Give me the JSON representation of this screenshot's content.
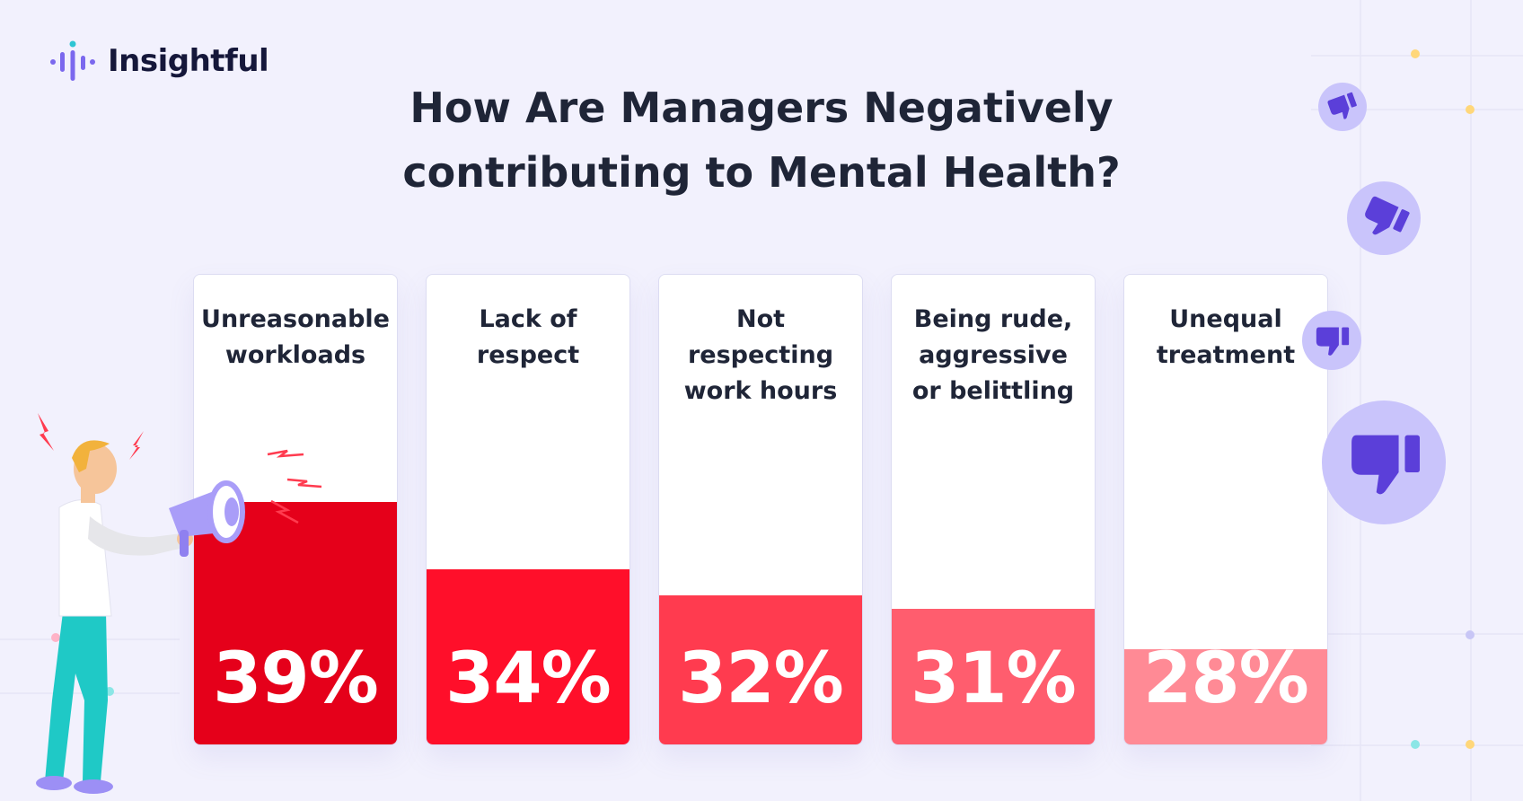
{
  "brand": {
    "name": "Insightful"
  },
  "title_lines": [
    "How Are Managers Negatively",
    "contributing to Mental Health?"
  ],
  "chart_data": {
    "type": "bar",
    "title": "How Are Managers Negatively contributing to Mental Health?",
    "categories": [
      "Unreasonable workloads",
      "Lack of respect",
      "Not respecting work hours",
      "Being rude, aggressive or belittling",
      "Unequal treatment"
    ],
    "labels_display": [
      "Unreasonable\nworkloads",
      "Lack of\nrespect",
      "Not\nrespecting\nwork hours",
      "Being rude,\naggressive\nor belittling",
      "Unequal\ntreatment"
    ],
    "values": [
      39,
      34,
      32,
      31,
      28
    ],
    "value_labels": [
      "39%",
      "34%",
      "32%",
      "31%",
      "28%"
    ],
    "ylim": [
      0,
      100
    ],
    "colors": [
      "#e5001a",
      "#ff0f2a",
      "#ff3b4f",
      "#ff5d6e",
      "#ff8a95"
    ]
  },
  "icons": [
    "brand-logo-icon",
    "thumbs-down-icon",
    "person-with-megaphone-illustration",
    "lightning-bolt-icon"
  ]
}
